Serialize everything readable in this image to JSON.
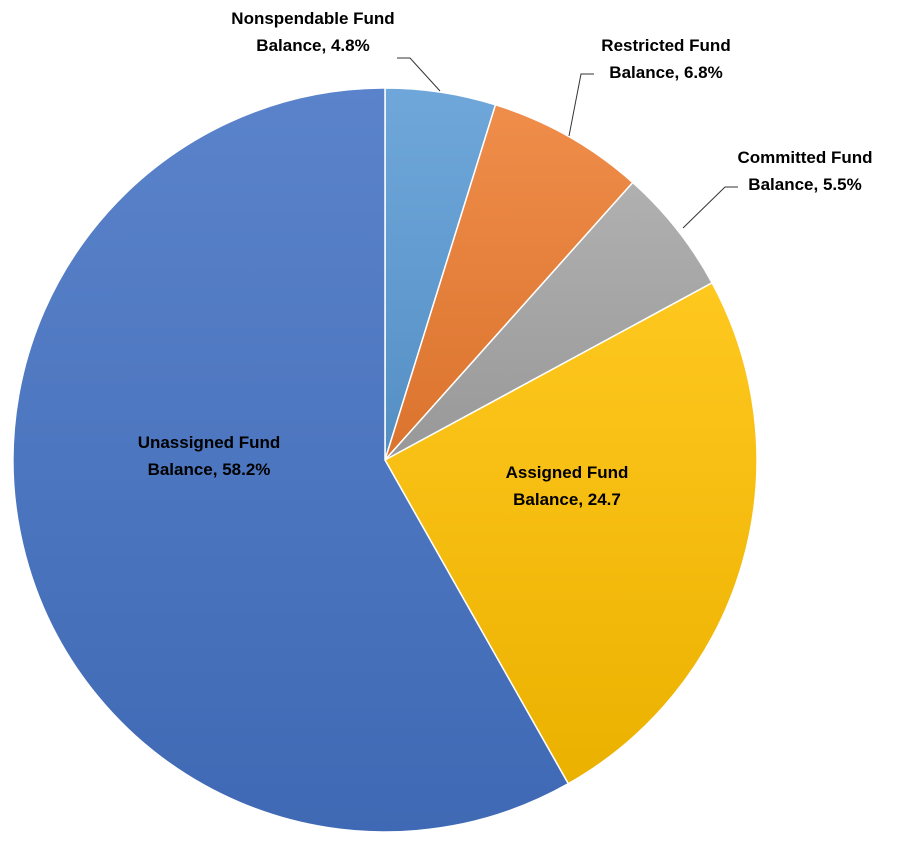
{
  "chart_data": {
    "type": "pie",
    "title": "",
    "start_angle_deg": 0,
    "direction": "clockwise",
    "slices": [
      {
        "label_line1": "Nonspendable Fund",
        "label_line2": "Balance, 4.8%",
        "value": 4.8,
        "color": "#5b9bd5"
      },
      {
        "label_line1": "Restricted Fund",
        "label_line2": "Balance, 6.8%",
        "value": 6.8,
        "color": "#ed7d31"
      },
      {
        "label_line1": "Committed Fund",
        "label_line2": "Balance, 5.5%",
        "value": 5.5,
        "color": "#a5a5a5"
      },
      {
        "label_line1": "Assigned Fund",
        "label_line2": "Balance, 24.7",
        "value": 24.7,
        "color": "#ffc000"
      },
      {
        "label_line1": "Unassigned Fund",
        "label_line2": "Balance, 58.2%",
        "value": 58.2,
        "color": "#4472c4"
      }
    ]
  }
}
